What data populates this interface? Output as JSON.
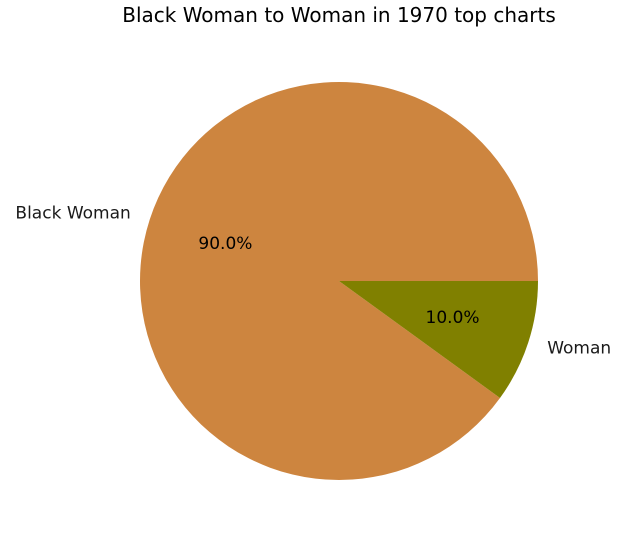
{
  "chart_data": {
    "type": "pie",
    "title": "Black Woman to Woman in 1970 top charts",
    "slices": [
      {
        "label": "Black Woman",
        "value": 90.0,
        "pct_label": "90.0%",
        "color": "#CD853F"
      },
      {
        "label": "Woman",
        "value": 10.0,
        "pct_label": "10.0%",
        "color": "#808000"
      }
    ],
    "start_angle_deg": 0,
    "direction": "counterclockwise"
  }
}
